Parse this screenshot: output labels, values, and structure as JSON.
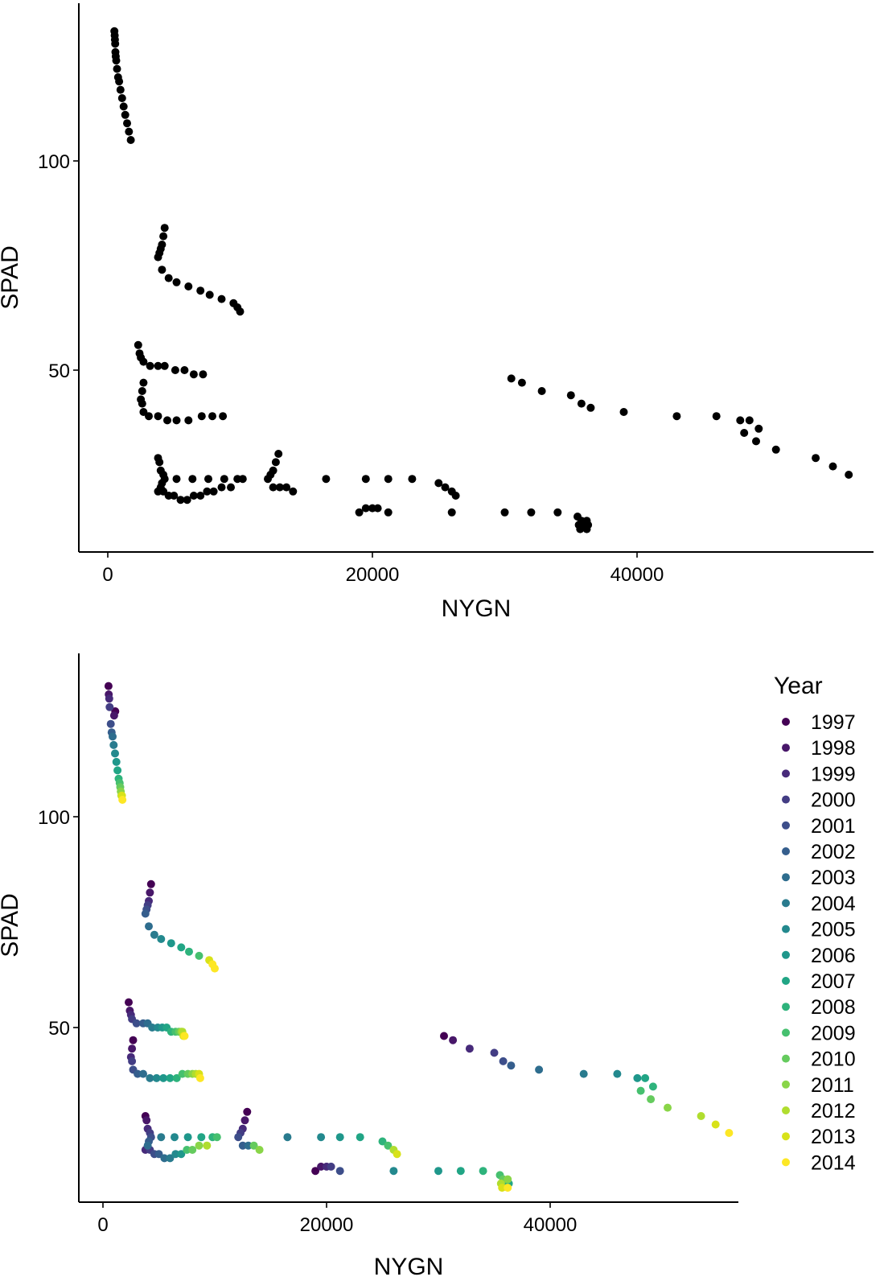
{
  "chart_data": [
    {
      "type": "scatter",
      "title": "",
      "xlabel": "NYGN",
      "ylabel": "SPAD",
      "xlim": [
        -3000,
        56000
      ],
      "ylim": [
        2,
        135
      ],
      "xticks": [
        0,
        20000,
        40000
      ],
      "xtick_labels": [
        "0",
        "20000",
        "40000"
      ],
      "yticks": [
        50,
        100
      ],
      "ytick_labels": [
        "50",
        "100"
      ],
      "grid": false,
      "legend": null,
      "point_color": "#000000",
      "points": [
        [
          500,
          131
        ],
        [
          520,
          130
        ],
        [
          540,
          129
        ],
        [
          560,
          128
        ],
        [
          580,
          126
        ],
        [
          600,
          125
        ],
        [
          640,
          124
        ],
        [
          700,
          122
        ],
        [
          780,
          120
        ],
        [
          860,
          119
        ],
        [
          960,
          117
        ],
        [
          1080,
          115
        ],
        [
          1200,
          113
        ],
        [
          1320,
          111
        ],
        [
          1460,
          109
        ],
        [
          1600,
          107
        ],
        [
          1740,
          105
        ],
        [
          4300,
          84
        ],
        [
          4200,
          82
        ],
        [
          4100,
          80
        ],
        [
          4000,
          79
        ],
        [
          3900,
          78
        ],
        [
          3800,
          77
        ],
        [
          4100,
          74
        ],
        [
          4600,
          72
        ],
        [
          5200,
          71
        ],
        [
          6100,
          70
        ],
        [
          7000,
          69
        ],
        [
          7700,
          68
        ],
        [
          8600,
          67
        ],
        [
          9500,
          66
        ],
        [
          9800,
          65
        ],
        [
          10000,
          64
        ],
        [
          2300,
          56
        ],
        [
          2400,
          54
        ],
        [
          2500,
          53
        ],
        [
          2700,
          52
        ],
        [
          3200,
          51
        ],
        [
          3800,
          51
        ],
        [
          4300,
          51
        ],
        [
          5100,
          50
        ],
        [
          5800,
          50
        ],
        [
          6500,
          49
        ],
        [
          7200,
          49
        ],
        [
          2700,
          47
        ],
        [
          2600,
          45
        ],
        [
          2500,
          43
        ],
        [
          2600,
          42
        ],
        [
          2700,
          40
        ],
        [
          3100,
          39
        ],
        [
          3800,
          39
        ],
        [
          4500,
          38
        ],
        [
          5200,
          38
        ],
        [
          6100,
          38
        ],
        [
          7100,
          39
        ],
        [
          7900,
          39
        ],
        [
          8700,
          39
        ],
        [
          3800,
          29
        ],
        [
          3900,
          28
        ],
        [
          4000,
          26
        ],
        [
          4200,
          25
        ],
        [
          4300,
          24
        ],
        [
          4100,
          23
        ],
        [
          4000,
          22
        ],
        [
          3800,
          21
        ],
        [
          4200,
          21
        ],
        [
          4600,
          20
        ],
        [
          5000,
          20
        ],
        [
          5500,
          19
        ],
        [
          6000,
          19
        ],
        [
          6500,
          20
        ],
        [
          7000,
          20
        ],
        [
          7500,
          21
        ],
        [
          8000,
          21
        ],
        [
          8600,
          22
        ],
        [
          9300,
          22
        ],
        [
          5200,
          24
        ],
        [
          6400,
          24
        ],
        [
          7600,
          24
        ],
        [
          8800,
          24
        ],
        [
          9800,
          24
        ],
        [
          10200,
          24
        ],
        [
          12100,
          24
        ],
        [
          12300,
          25
        ],
        [
          12500,
          26
        ],
        [
          12700,
          28
        ],
        [
          12900,
          30
        ],
        [
          12500,
          22
        ],
        [
          13000,
          22
        ],
        [
          13500,
          22
        ],
        [
          14000,
          21
        ],
        [
          16500,
          24
        ],
        [
          19500,
          24
        ],
        [
          21200,
          24
        ],
        [
          23000,
          24
        ],
        [
          25000,
          23
        ],
        [
          25500,
          22
        ],
        [
          26000,
          21
        ],
        [
          26300,
          20
        ],
        [
          19000,
          16
        ],
        [
          19500,
          17
        ],
        [
          20000,
          17
        ],
        [
          20400,
          17
        ],
        [
          21200,
          16
        ],
        [
          26000,
          16
        ],
        [
          30000,
          16
        ],
        [
          32000,
          16
        ],
        [
          34000,
          16
        ],
        [
          35500,
          15
        ],
        [
          35800,
          14
        ],
        [
          36200,
          14
        ],
        [
          35600,
          13
        ],
        [
          36000,
          13
        ],
        [
          36300,
          13
        ],
        [
          35700,
          12
        ],
        [
          36200,
          12
        ],
        [
          30500,
          48
        ],
        [
          31300,
          47
        ],
        [
          32800,
          45
        ],
        [
          35000,
          44
        ],
        [
          35800,
          42
        ],
        [
          36500,
          41
        ],
        [
          39000,
          40
        ],
        [
          43000,
          39
        ],
        [
          46000,
          39
        ],
        [
          47800,
          38
        ],
        [
          48500,
          38
        ],
        [
          48100,
          35
        ],
        [
          49200,
          36
        ],
        [
          49000,
          33
        ],
        [
          50500,
          31
        ],
        [
          53500,
          29
        ],
        [
          54800,
          27
        ],
        [
          56000,
          25
        ]
      ]
    },
    {
      "type": "scatter",
      "title": "",
      "xlabel": "NYGN",
      "ylabel": "SPAD",
      "xlim": [
        -1000,
        55000
      ],
      "ylim": [
        2,
        135
      ],
      "xticks": [
        0,
        20000,
        40000
      ],
      "xtick_labels": [
        "0",
        "20000",
        "40000"
      ],
      "yticks": [
        50,
        100
      ],
      "ytick_labels": [
        "50",
        "100"
      ],
      "grid": false,
      "legend": {
        "title": "Year",
        "position": "right"
      },
      "colors": {
        "1997": "#440154",
        "1998": "#481769",
        "1999": "#472A7A",
        "2000": "#433D84",
        "2001": "#3D4E8A",
        "2002": "#355E8D",
        "2003": "#2E6D8E",
        "2004": "#297B8E",
        "2005": "#23898E",
        "2006": "#1F978B",
        "2007": "#21A585",
        "2008": "#2EB37C",
        "2009": "#46C06F",
        "2010": "#65CB5E",
        "2011": "#89D548",
        "2012": "#B0DD2F",
        "2013": "#D8E219",
        "2014": "#FDE725"
      },
      "series": [
        {
          "name": "1997",
          "points": [
            [
              500,
              131
            ],
            [
              1100,
              125
            ],
            [
              2300,
              56
            ],
            [
              2700,
              47
            ],
            [
              3800,
              29
            ],
            [
              4300,
              84
            ],
            [
              12900,
              30
            ],
            [
              30500,
              48
            ],
            [
              19000,
              16
            ]
          ]
        },
        {
          "name": "1998",
          "points": [
            [
              520,
              129
            ],
            [
              1000,
              124
            ],
            [
              2400,
              54
            ],
            [
              2600,
              45
            ],
            [
              3900,
              28
            ],
            [
              4200,
              82
            ],
            [
              12700,
              28
            ],
            [
              31300,
              47
            ],
            [
              19500,
              17
            ]
          ]
        },
        {
          "name": "1999",
          "points": [
            [
              560,
              128
            ],
            [
              2500,
              53
            ],
            [
              2500,
              43
            ],
            [
              4000,
              26
            ],
            [
              4100,
              80
            ],
            [
              12500,
              26
            ],
            [
              32800,
              45
            ],
            [
              20000,
              17
            ],
            [
              3800,
              21
            ]
          ]
        },
        {
          "name": "2000",
          "points": [
            [
              600,
              126
            ],
            [
              2600,
              52
            ],
            [
              2600,
              42
            ],
            [
              4200,
              25
            ],
            [
              4000,
              79
            ],
            [
              12300,
              25
            ],
            [
              35000,
              44
            ],
            [
              20400,
              17
            ],
            [
              4200,
              21
            ]
          ]
        },
        {
          "name": "2001",
          "points": [
            [
              700,
              122
            ],
            [
              3000,
              51
            ],
            [
              2700,
              40
            ],
            [
              4300,
              24
            ],
            [
              3900,
              78
            ],
            [
              12100,
              24
            ],
            [
              35800,
              42
            ],
            [
              21200,
              16
            ],
            [
              4600,
              20
            ]
          ]
        },
        {
          "name": "2002",
          "points": [
            [
              780,
              120
            ],
            [
              3600,
              51
            ],
            [
              3100,
              39
            ],
            [
              4100,
              23
            ],
            [
              3800,
              77
            ],
            [
              12500,
              22
            ],
            [
              36500,
              41
            ],
            [
              5000,
              20
            ]
          ]
        },
        {
          "name": "2003",
          "points": [
            [
              860,
              119
            ],
            [
              4000,
              51
            ],
            [
              3600,
              39
            ],
            [
              4000,
              22
            ],
            [
              4100,
              74
            ],
            [
              13000,
              22
            ],
            [
              39000,
              40
            ],
            [
              5500,
              19
            ]
          ]
        },
        {
          "name": "2004",
          "points": [
            [
              960,
              117
            ],
            [
              4400,
              50
            ],
            [
              4200,
              38
            ],
            [
              5200,
              24
            ],
            [
              4600,
              72
            ],
            [
              43000,
              39
            ],
            [
              6000,
              19
            ],
            [
              16500,
              24
            ]
          ]
        },
        {
          "name": "2005",
          "points": [
            [
              1080,
              115
            ],
            [
              4900,
              50
            ],
            [
              4800,
              38
            ],
            [
              6400,
              24
            ],
            [
              5200,
              71
            ],
            [
              46000,
              39
            ],
            [
              6500,
              20
            ],
            [
              19500,
              24
            ],
            [
              26000,
              16
            ]
          ]
        },
        {
          "name": "2006",
          "points": [
            [
              1200,
              113
            ],
            [
              5300,
              50
            ],
            [
              5400,
              38
            ],
            [
              7600,
              24
            ],
            [
              6100,
              70
            ],
            [
              47800,
              38
            ],
            [
              7000,
              20
            ],
            [
              21200,
              24
            ],
            [
              30000,
              16
            ]
          ]
        },
        {
          "name": "2007",
          "points": [
            [
              1300,
              111
            ],
            [
              5700,
              50
            ],
            [
              6000,
              38
            ],
            [
              8800,
              24
            ],
            [
              7000,
              69
            ],
            [
              48500,
              38
            ],
            [
              23000,
              24
            ],
            [
              32000,
              16
            ],
            [
              36300,
              13
            ]
          ]
        },
        {
          "name": "2008",
          "points": [
            [
              1400,
              109
            ],
            [
              6100,
              49
            ],
            [
              6600,
              38
            ],
            [
              9800,
              24
            ],
            [
              7700,
              68
            ],
            [
              49200,
              36
            ],
            [
              25000,
              23
            ],
            [
              34000,
              16
            ],
            [
              36000,
              13
            ]
          ]
        },
        {
          "name": "2009",
          "points": [
            [
              1500,
              108
            ],
            [
              6500,
              49
            ],
            [
              7100,
              39
            ],
            [
              10200,
              24
            ],
            [
              8600,
              67
            ],
            [
              48100,
              35
            ],
            [
              7500,
              21
            ],
            [
              25500,
              22
            ],
            [
              35500,
              15
            ]
          ]
        },
        {
          "name": "2010",
          "points": [
            [
              1550,
              107
            ],
            [
              6800,
              49
            ],
            [
              7600,
              39
            ],
            [
              49000,
              33
            ],
            [
              8000,
              21
            ],
            [
              13500,
              22
            ],
            [
              35800,
              14
            ]
          ]
        },
        {
          "name": "2011",
          "points": [
            [
              1600,
              106
            ],
            [
              7000,
              49
            ],
            [
              8000,
              39
            ],
            [
              50500,
              31
            ],
            [
              8600,
              22
            ],
            [
              14000,
              21
            ],
            [
              36200,
              14
            ]
          ]
        },
        {
          "name": "2012",
          "points": [
            [
              1650,
              105
            ],
            [
              7100,
              49
            ],
            [
              8300,
              39
            ],
            [
              53500,
              29
            ],
            [
              9300,
              22
            ],
            [
              26000,
              21
            ],
            [
              35600,
              13
            ]
          ]
        },
        {
          "name": "2013",
          "points": [
            [
              1700,
              105
            ],
            [
              7200,
              48
            ],
            [
              8600,
              39
            ],
            [
              9500,
              66
            ],
            [
              54800,
              27
            ],
            [
              26300,
              20
            ],
            [
              35700,
              12
            ]
          ]
        },
        {
          "name": "2014",
          "points": [
            [
              1740,
              104
            ],
            [
              7300,
              48
            ],
            [
              8700,
              38
            ],
            [
              9800,
              65
            ],
            [
              10000,
              64
            ],
            [
              56000,
              25
            ],
            [
              36200,
              12
            ]
          ]
        }
      ]
    }
  ]
}
